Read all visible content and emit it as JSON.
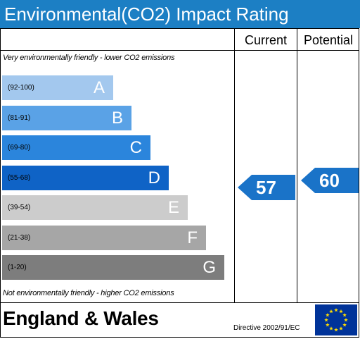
{
  "header": {
    "title": "Environmental(CO2) Impact Rating"
  },
  "columns": {
    "current": "Current",
    "potential": "Potential"
  },
  "notes": {
    "top": "Very environmentally friendly - lower CO2 emissions",
    "bottom": "Not environmentally friendly - higher CO2 emissions"
  },
  "bands": [
    {
      "range": "(92-100)",
      "letter": "A",
      "color": "#a3c8ee",
      "text_color": "#000000"
    },
    {
      "range": "(81-91)",
      "letter": "B",
      "color": "#5aa2e6",
      "text_color": "#000000"
    },
    {
      "range": "(69-80)",
      "letter": "C",
      "color": "#2b85dc",
      "text_color": "#000000"
    },
    {
      "range": "(55-68)",
      "letter": "D",
      "color": "#0f63c6",
      "text_color": "#000000"
    },
    {
      "range": "(39-54)",
      "letter": "E",
      "color": "#cccccc",
      "text_color": "#000000"
    },
    {
      "range": "(21-38)",
      "letter": "F",
      "color": "#a6a6a6",
      "text_color": "#000000"
    },
    {
      "range": "(1-20)",
      "letter": "G",
      "color": "#7d7d7d",
      "text_color": "#000000"
    }
  ],
  "ratings": {
    "current": {
      "value": "57",
      "color": "#1a73c8"
    },
    "potential": {
      "value": "60",
      "color": "#1a73c8"
    }
  },
  "footer": {
    "title": "England & Wales",
    "directive": "Directive 2002/91/EC",
    "flag": {
      "icon": "eu-flag-icon",
      "background": "#003399",
      "stars": "#ffdd00"
    }
  }
}
